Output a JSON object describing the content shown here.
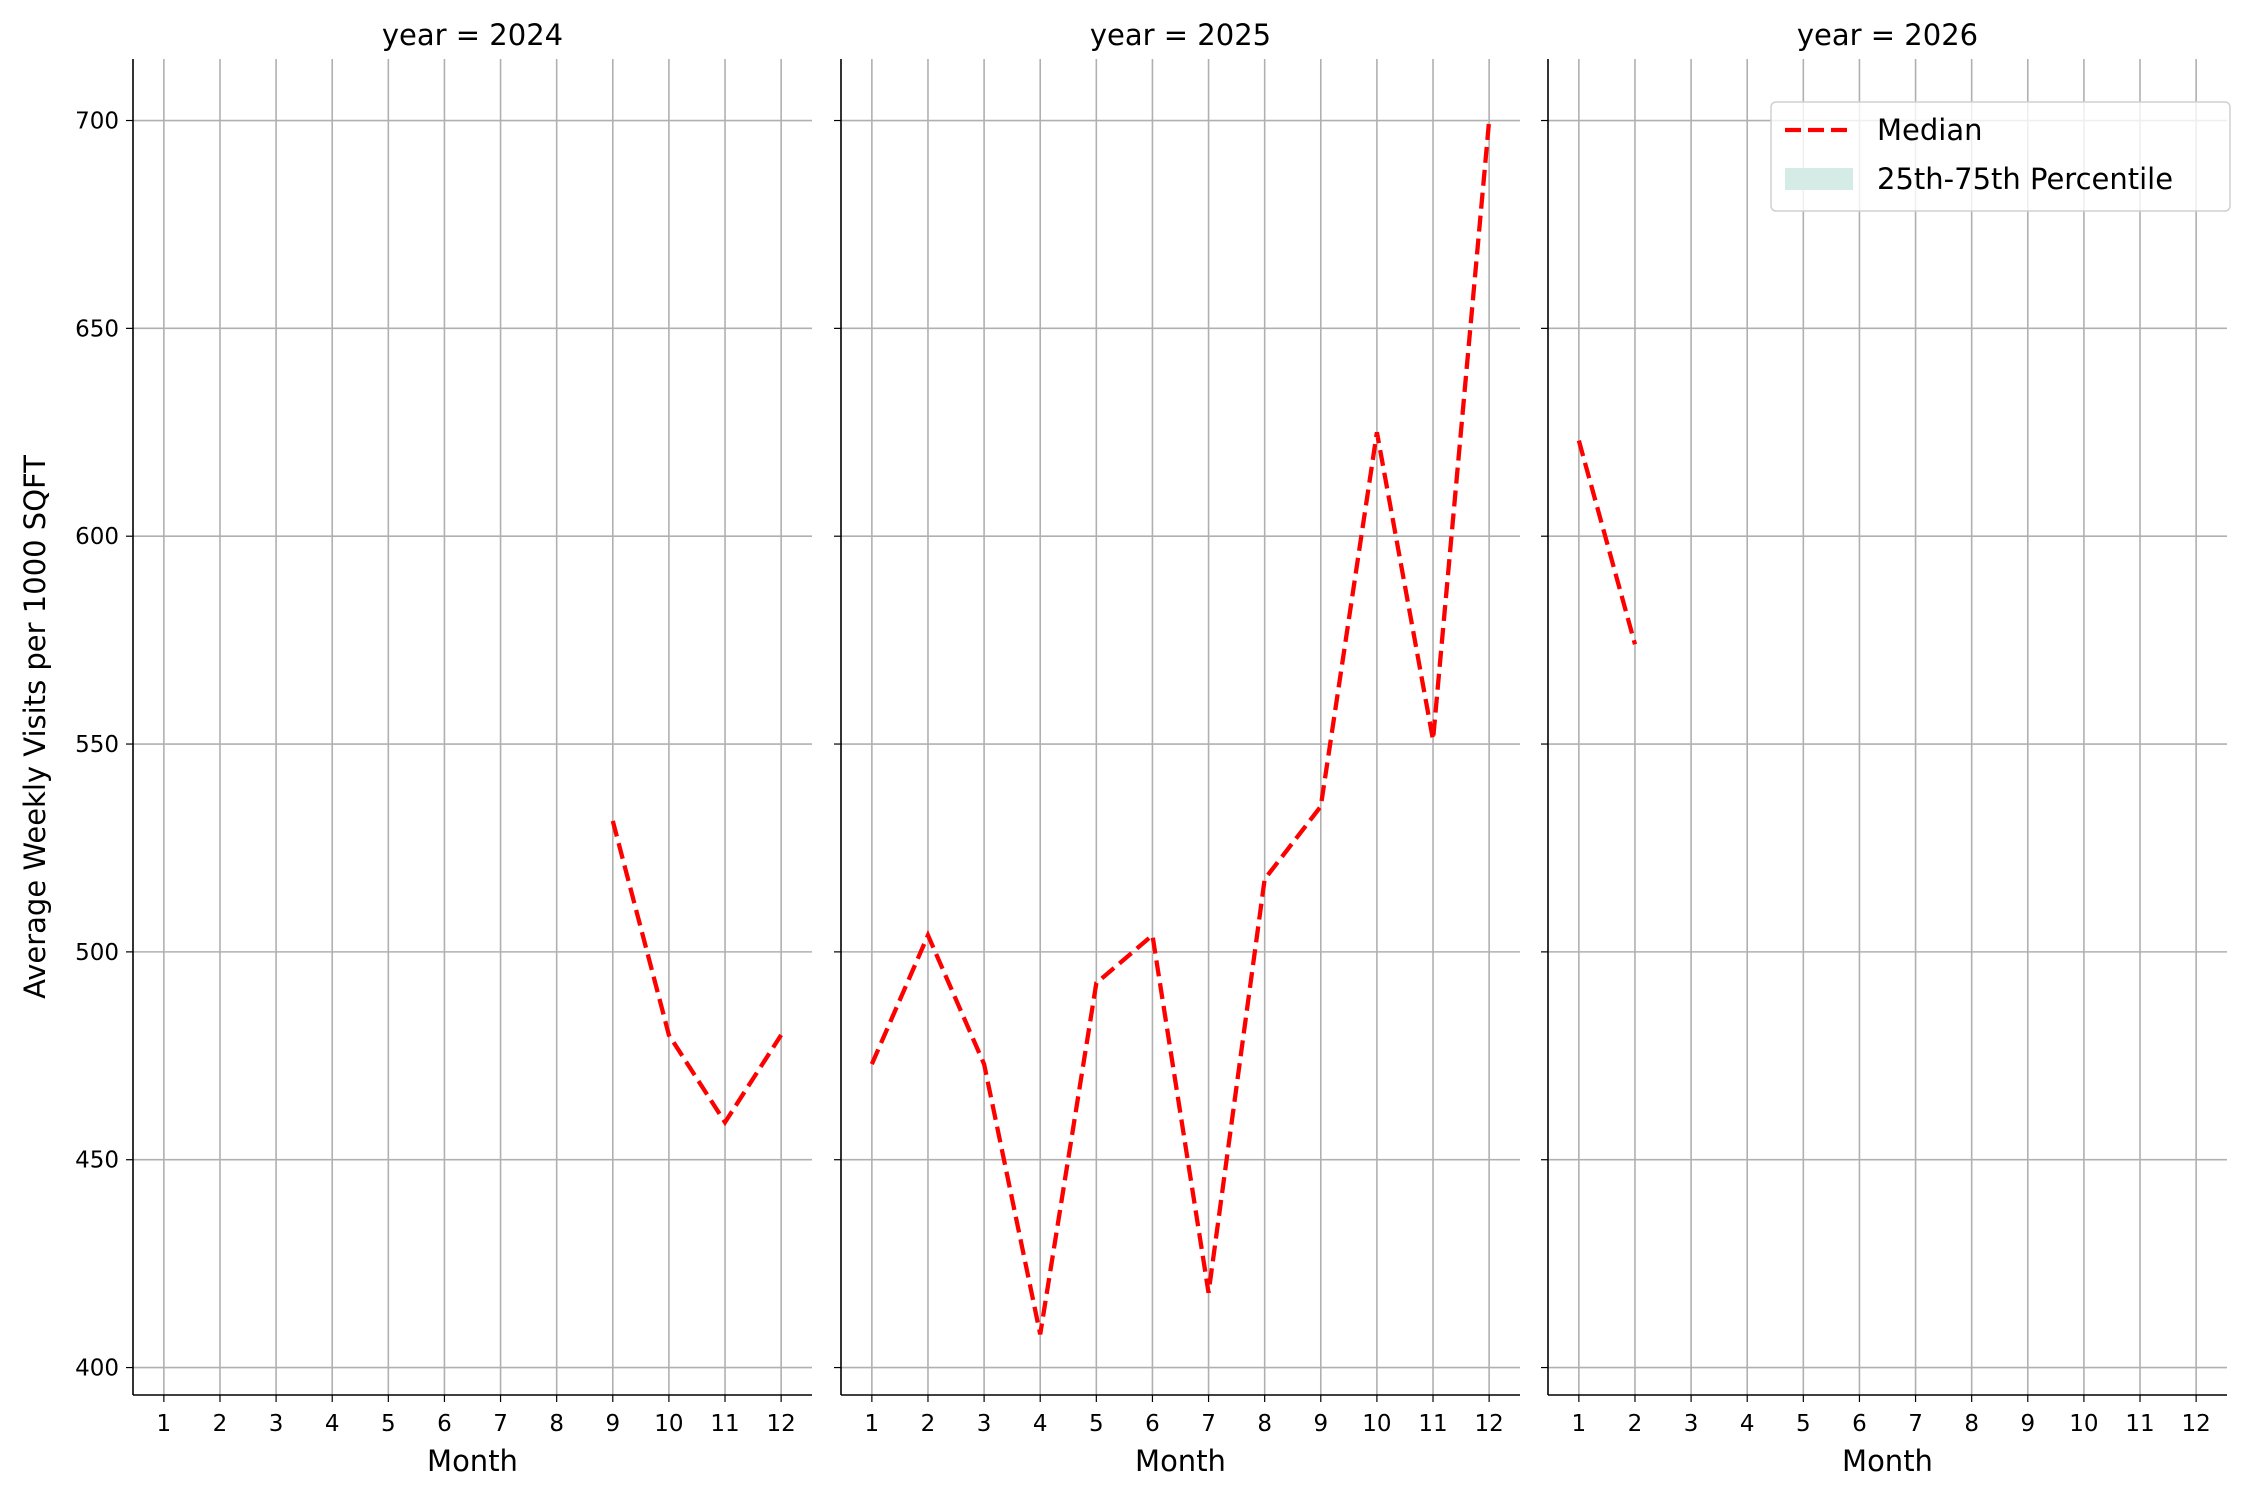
{
  "chart_data": {
    "type": "line",
    "ylabel": "Average Weekly Visits per 1000 SQFT",
    "ylim": [
      393.4,
      714.8
    ],
    "yticks": [
      400,
      450,
      500,
      550,
      600,
      650,
      700
    ],
    "xticks": [
      1,
      2,
      3,
      4,
      5,
      6,
      7,
      8,
      9,
      10,
      11,
      12
    ],
    "xlim": [
      0.45,
      12.55
    ],
    "grid": true,
    "legend": {
      "placement": "top-right of last panel",
      "entries": [
        {
          "label": "Median",
          "color": "#ff0000",
          "style": "dashed line"
        },
        {
          "label": "25th-75th Percentile",
          "color": "#d5ece6",
          "style": "filled patch"
        }
      ]
    },
    "panels": [
      {
        "title": "year = 2024",
        "xlabel": "Month",
        "series": [
          {
            "name": "Median",
            "x": [
              9,
              10,
              11,
              12
            ],
            "y": [
              531.5,
              480,
              459,
              480
            ]
          }
        ]
      },
      {
        "title": "year = 2025",
        "xlabel": "Month",
        "series": [
          {
            "name": "Median",
            "x": [
              1,
              2,
              3,
              4,
              5,
              6,
              7,
              8,
              9,
              10,
              11,
              12
            ],
            "y": [
              473,
              504,
              473,
              408,
              492.5,
              504,
              418,
              517.5,
              535,
              625,
              551,
              700
            ]
          }
        ]
      },
      {
        "title": "year = 2026",
        "xlabel": "Month",
        "series": [
          {
            "name": "Median",
            "x": [
              1,
              2
            ],
            "y": [
              623,
              574
            ]
          }
        ]
      }
    ]
  }
}
